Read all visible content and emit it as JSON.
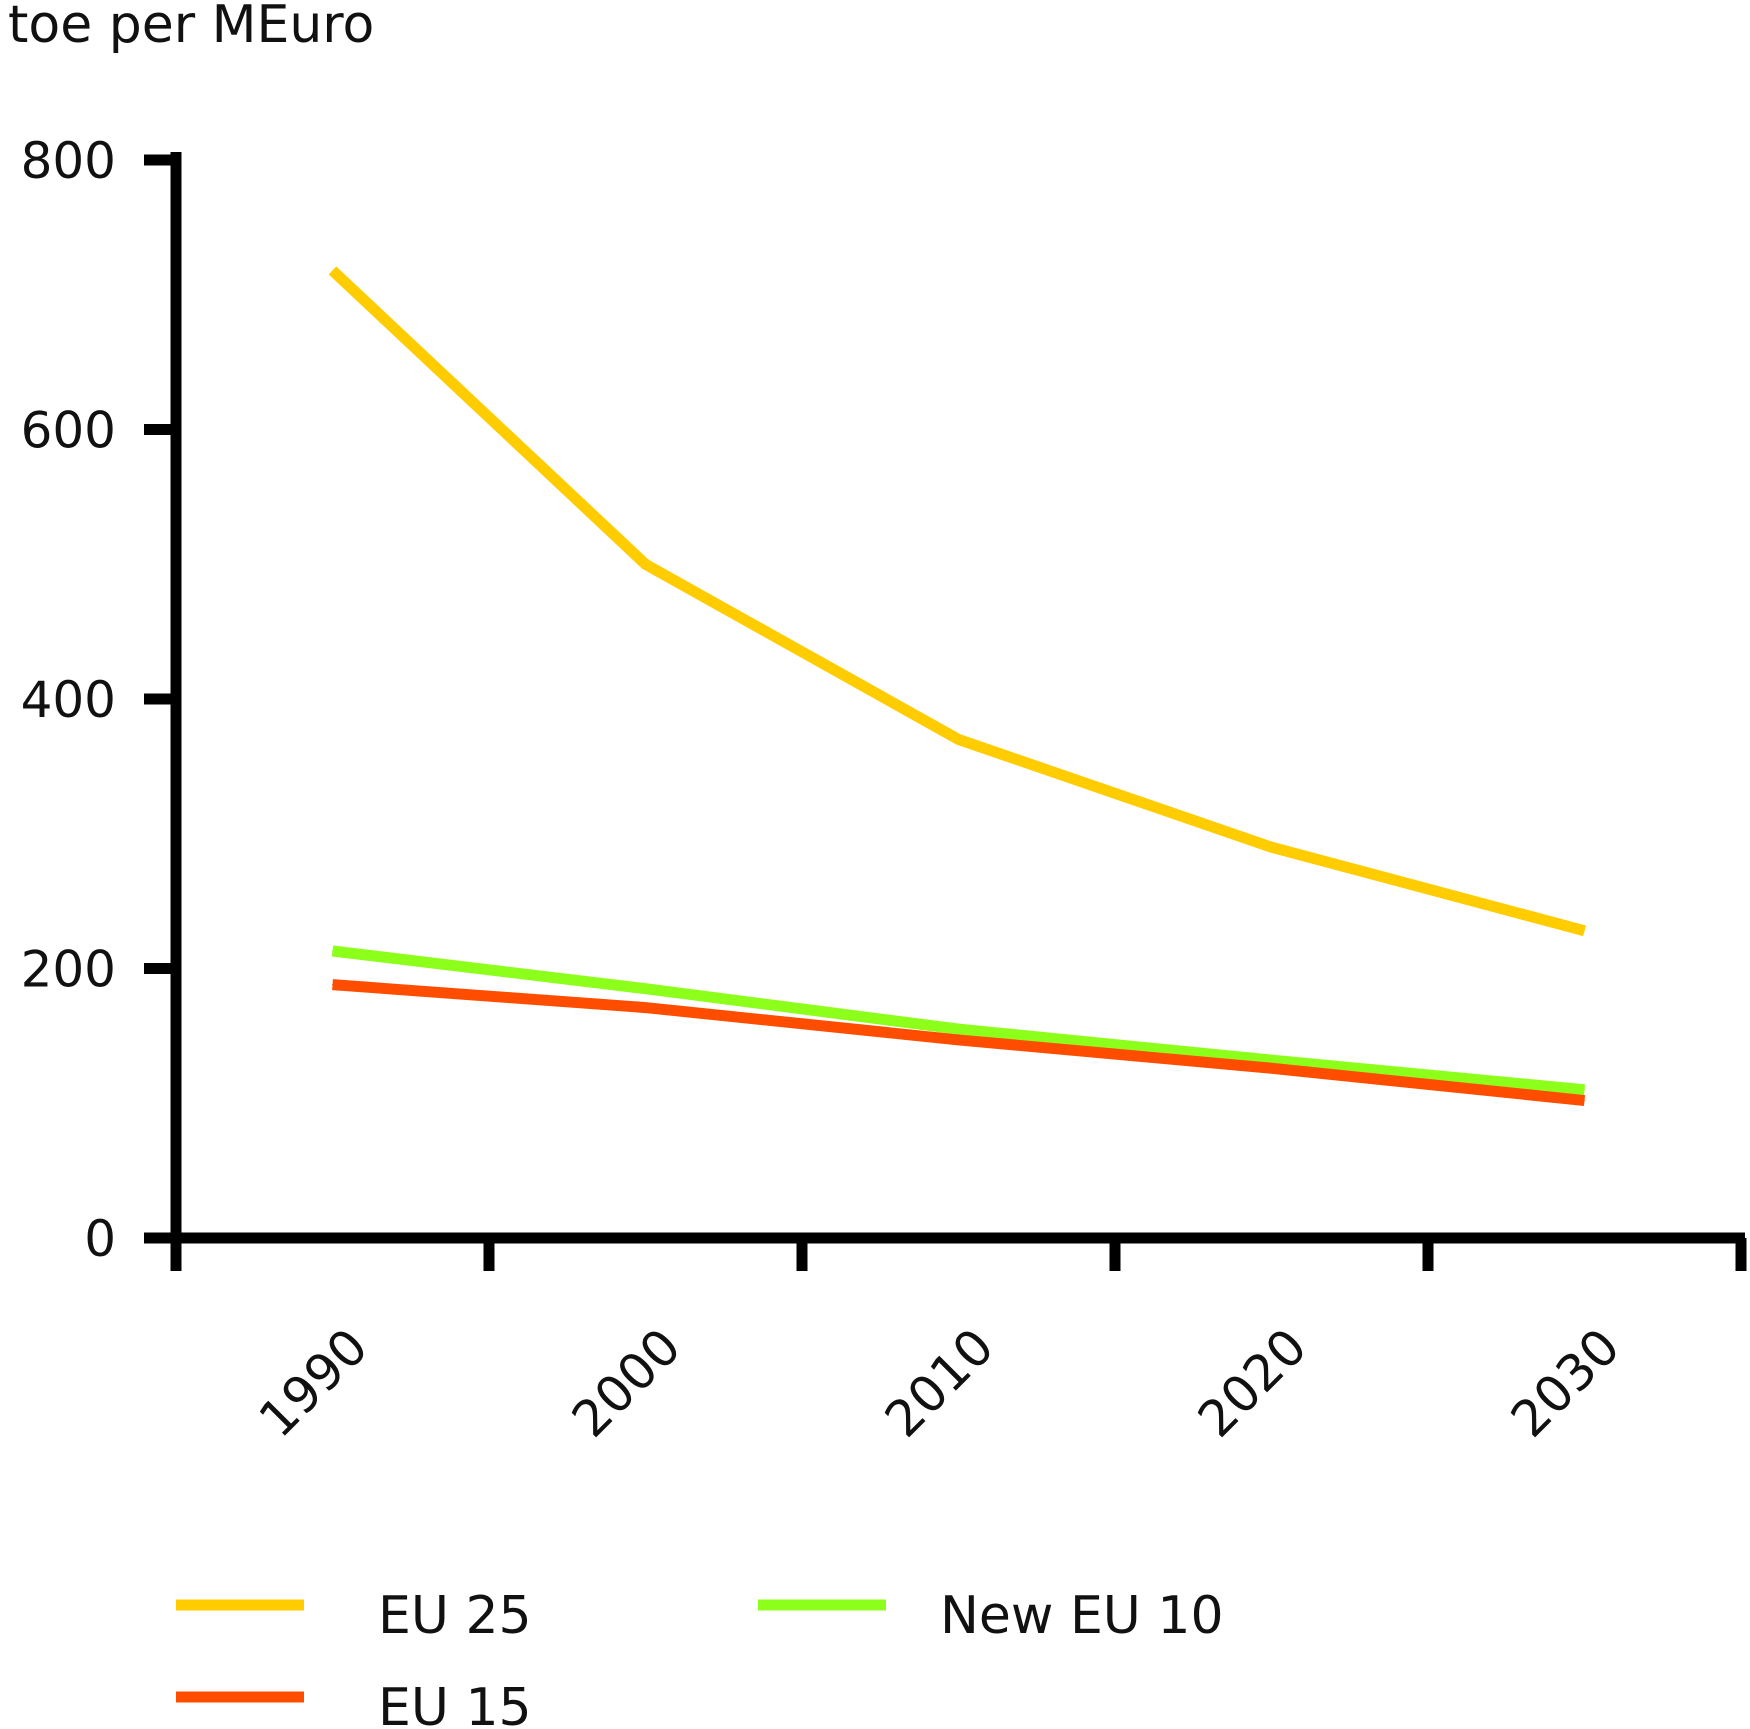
{
  "chart_data": {
    "type": "line",
    "ylabel": "toe per MEuro",
    "x": [
      "1990",
      "2000",
      "2010",
      "2020",
      "2030"
    ],
    "ylim": [
      0,
      800
    ],
    "yticks": [
      "0",
      "200",
      "400",
      "600",
      "800"
    ],
    "series": [
      {
        "name": "EU 25",
        "color": "#FFCC00",
        "values": [
          718,
          500,
          370,
          290,
          228
        ]
      },
      {
        "name": "EU 15",
        "color": "#FF4D00",
        "values": [
          188,
          171,
          147,
          126,
          102
        ]
      },
      {
        "name": "New EU 10",
        "color": "#8CFF1A",
        "values": [
          213,
          185,
          155,
          132,
          110
        ]
      }
    ],
    "legend": "bottom"
  }
}
